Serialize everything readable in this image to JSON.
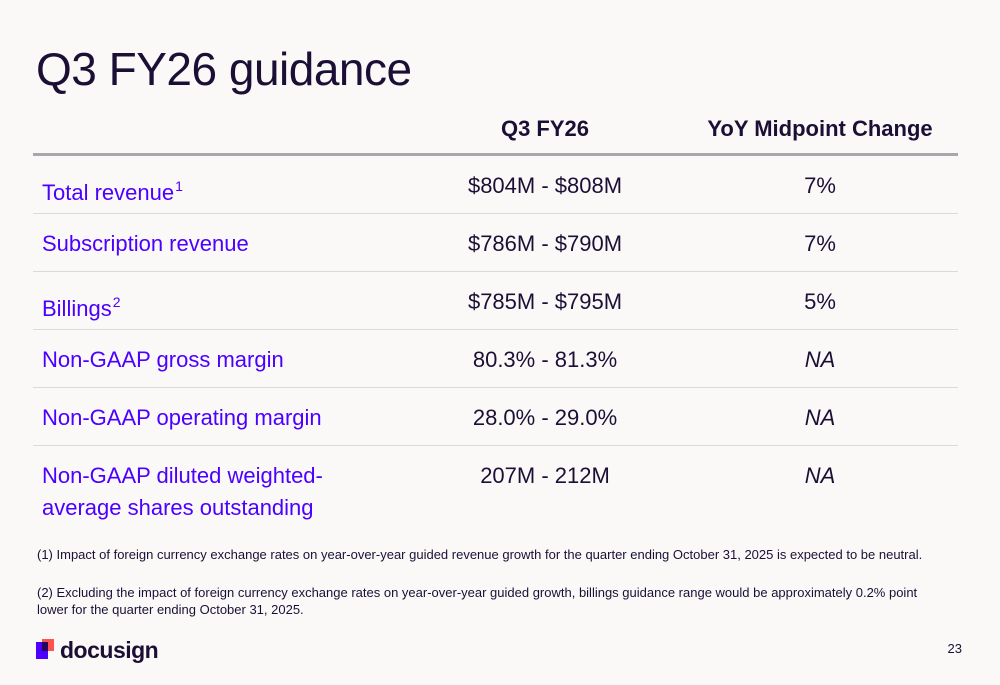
{
  "slide": {
    "title": "Q3 FY26 guidance",
    "columns": [
      "Q3 FY26",
      "YoY Midpoint Change"
    ],
    "rows": [
      {
        "label": "Total revenue",
        "sup": "1",
        "value": "$804M - $808M",
        "change": "7%"
      },
      {
        "label": "Subscription revenue",
        "sup": "",
        "value": "$786M - $790M",
        "change": "7%"
      },
      {
        "label": "Billings",
        "sup": "2",
        "value": "$785M - $795M",
        "change": "5%"
      },
      {
        "label": "Non-GAAP gross margin",
        "sup": "",
        "value": "80.3% - 81.3%",
        "change": "NA"
      },
      {
        "label": "Non-GAAP operating margin",
        "sup": "",
        "value": "28.0% - 29.0%",
        "change": "NA"
      },
      {
        "label": "Non-GAAP diluted weighted-average shares outstanding",
        "sup": "",
        "value": "207M - 212M",
        "change": "NA"
      }
    ],
    "footnotes": [
      "(1) Impact of foreign currency exchange rates on year-over-year guided revenue growth for the quarter ending October 31, 2025 is expected to be neutral.",
      "(2) Excluding the impact of foreign currency exchange rates on year-over-year guided growth, billings guidance range would be approximately 0.2% point lower for the quarter ending October 31, 2025."
    ],
    "brand": "docusign",
    "page_number": "23"
  },
  "colors": {
    "accent": "#4c00ff",
    "text": "#1c0f36",
    "logo_purple": "#4c00ff",
    "logo_orange": "#ff5252"
  }
}
